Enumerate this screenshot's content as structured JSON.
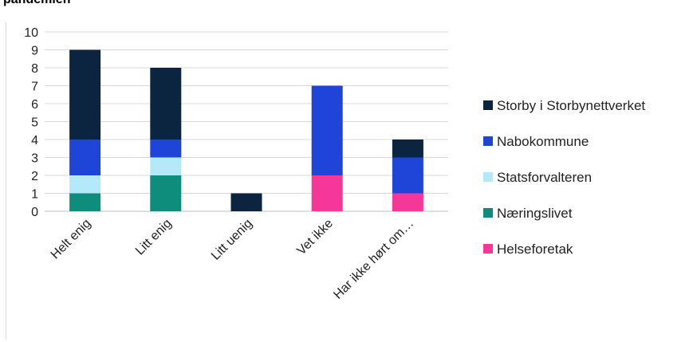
{
  "title": "pandemien",
  "chart_data": {
    "type": "bar",
    "stacked": true,
    "categories": [
      "Helt enig",
      "Litt enig",
      "Litt uenig",
      "Vet ikke",
      "Har ikke hørt om…"
    ],
    "series": [
      {
        "name": "Næringslivet",
        "color": "#0e8c7c",
        "values": [
          1,
          2,
          0,
          0,
          0
        ]
      },
      {
        "name": "Statsforvalteren",
        "color": "#b3e9f8",
        "values": [
          1,
          1,
          0,
          0,
          0
        ]
      },
      {
        "name": "Nabokommune",
        "color": "#1f45d8",
        "values": [
          2,
          1,
          0,
          5,
          2
        ]
      },
      {
        "name": "Storby i Storbynettverket",
        "color": "#0b2540",
        "values": [
          5,
          4,
          1,
          0,
          1
        ]
      },
      {
        "name": "Helseforetak",
        "color": "#f5379a",
        "values": [
          0,
          0,
          0,
          2,
          1
        ]
      }
    ],
    "stack_order": [
      "Næringslivet",
      "Helseforetak",
      "Statsforvalteren",
      "Nabokommune",
      "Storby i Storbynettverket"
    ],
    "legend_order": [
      "Storby i Storbynettverket",
      "Nabokommune",
      "Statsforvalteren",
      "Næringslivet",
      "Helseforetak"
    ],
    "legend_position": "right",
    "ylim": [
      0,
      10
    ],
    "yticks": [
      0,
      1,
      2,
      3,
      4,
      5,
      6,
      7,
      8,
      9,
      10
    ],
    "grid": true
  }
}
